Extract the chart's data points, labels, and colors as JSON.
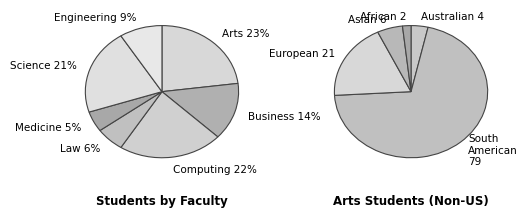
{
  "chart1": {
    "title": "Students by Faculty",
    "labels": [
      "Arts 23%",
      "Business 14%",
      "Computing 22%",
      "Law 6%",
      "Medicine 5%",
      "Science 21%",
      "Engineering 9%"
    ],
    "values": [
      23,
      14,
      22,
      6,
      5,
      21,
      9
    ],
    "colors": [
      "#d8d8d8",
      "#b0b0b0",
      "#d0d0d0",
      "#c0c0c0",
      "#a8a8a8",
      "#e0e0e0",
      "#e8e8e8"
    ],
    "startangle": 90
  },
  "chart2": {
    "title": "Arts Students (Non-US)",
    "labels": [
      "Australian 4",
      "South\nAmerican\n79",
      "European 21",
      "Asian 6",
      "African 2"
    ],
    "values": [
      4,
      79,
      21,
      6,
      2
    ],
    "colors": [
      "#c8c8c8",
      "#c0c0c0",
      "#d8d8d8",
      "#b8b8b8",
      "#a8a8a8"
    ],
    "startangle": 90
  },
  "background_color": "#ffffff",
  "title_fontsize": 8.5,
  "label_fontsize": 7.5
}
